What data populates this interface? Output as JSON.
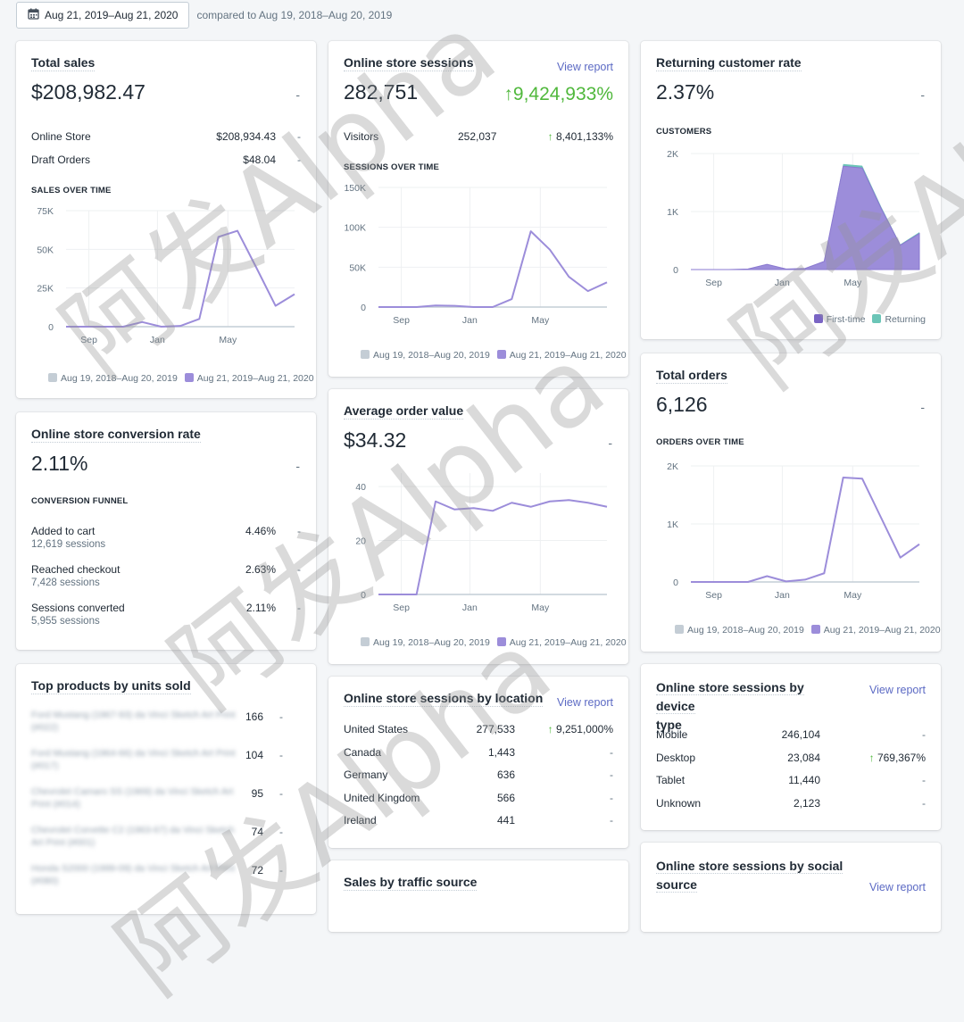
{
  "header": {
    "date_range": "Aug 21, 2019–Aug 21, 2020",
    "compare_text": "compared to Aug 19, 2018–Aug 20, 2019"
  },
  "colors": {
    "accent": "#9c8dda",
    "accent_dark": "#7a65c4",
    "previous": "#c4cdd5",
    "positive": "#50b83c",
    "link": "#5c6ac4",
    "returning": "#6bc5b7"
  },
  "total_sales": {
    "title": "Total sales",
    "value": "$208,982.47",
    "change": "-",
    "rows": [
      {
        "label": "Online Store",
        "value": "$208,934.43",
        "change": "-"
      },
      {
        "label": "Draft Orders",
        "value": "$48.04",
        "change": "-"
      }
    ],
    "chart_caption": "SALES OVER TIME",
    "legend_prev": "Aug 19, 2018–Aug 20, 2019",
    "legend_curr": "Aug 21, 2019–Aug 21, 2020"
  },
  "sessions": {
    "title": "Online store sessions",
    "view_report": "View report",
    "value": "282,751",
    "change": "9,424,933%",
    "visitors_label": "Visitors",
    "visitors_value": "252,037",
    "visitors_change": "8,401,133%",
    "chart_caption": "SESSIONS OVER TIME",
    "legend_prev": "Aug 19, 2018–Aug 20, 2019",
    "legend_curr": "Aug 21, 2019–Aug 21, 2020"
  },
  "returning": {
    "title": "Returning customer rate",
    "value": "2.37%",
    "change": "-",
    "chart_caption": "CUSTOMERS",
    "legend_first": "First-time",
    "legend_returning": "Returning"
  },
  "conversion": {
    "title": "Online store conversion rate",
    "value": "2.11%",
    "change": "-",
    "caption": "CONVERSION FUNNEL",
    "steps": [
      {
        "label": "Added to cart",
        "sessions": "12,619 sessions",
        "rate": "4.46%",
        "change": "-"
      },
      {
        "label": "Reached checkout",
        "sessions": "7,428 sessions",
        "rate": "2.63%",
        "change": "-"
      },
      {
        "label": "Sessions converted",
        "sessions": "5,955 sessions",
        "rate": "2.11%",
        "change": "-"
      }
    ]
  },
  "aov": {
    "title": "Average order value",
    "value": "$34.32",
    "change": "-",
    "legend_prev": "Aug 19, 2018–Aug 20, 2019",
    "legend_curr": "Aug 21, 2019–Aug 21, 2020"
  },
  "orders": {
    "title": "Total orders",
    "value": "6,126",
    "change": "-",
    "chart_caption": "ORDERS OVER TIME",
    "legend_prev": "Aug 19, 2018–Aug 20, 2019",
    "legend_curr": "Aug 21, 2019–Aug 21, 2020"
  },
  "top_products": {
    "title": "Top products by units sold",
    "items": [
      {
        "name": "Ford Mustang (1967-93) da Vinci Sketch Art Print (#022)",
        "units": "166",
        "change": "-"
      },
      {
        "name": "Ford Mustang (1964-66) da Vinci Sketch Art Print (#017)",
        "units": "104",
        "change": "-"
      },
      {
        "name": "Chevrolet Camaro SS (1969) da Vinci Sketch Art Print (#014)",
        "units": "95",
        "change": "-"
      },
      {
        "name": "Chevrolet Corvette C2 (1963-67) da Vinci Sketch Art Print (#001)",
        "units": "74",
        "change": "-"
      },
      {
        "name": "Honda S2000 (1999-09) da Vinci Sketch Art Print (#080)",
        "units": "72",
        "change": "-"
      }
    ]
  },
  "location": {
    "title": "Online store sessions by location",
    "view_report": "View report",
    "rows": [
      {
        "label": "United States",
        "value": "277,533",
        "change": "9,251,000%",
        "up": true
      },
      {
        "label": "Canada",
        "value": "1,443",
        "change": "-",
        "up": false
      },
      {
        "label": "Germany",
        "value": "636",
        "change": "-",
        "up": false
      },
      {
        "label": "United Kingdom",
        "value": "566",
        "change": "-",
        "up": false
      },
      {
        "label": "Ireland",
        "value": "441",
        "change": "-",
        "up": false
      }
    ]
  },
  "device": {
    "title_line1": "Online store sessions by device",
    "title_line2": "type",
    "view_report": "View report",
    "rows": [
      {
        "label": "Mobile",
        "value": "246,104",
        "change": "-",
        "up": false
      },
      {
        "label": "Desktop",
        "value": "23,084",
        "change": "769,367%",
        "up": true
      },
      {
        "label": "Tablet",
        "value": "11,440",
        "change": "-",
        "up": false
      },
      {
        "label": "Unknown",
        "value": "2,123",
        "change": "-",
        "up": false
      }
    ]
  },
  "traffic": {
    "title": "Sales by traffic source"
  },
  "social": {
    "title_line1": "Online store sessions by social",
    "title_line2": "source",
    "view_report": "View report"
  },
  "watermark": {
    "text": "阿发Alpha"
  },
  "chart_data": [
    {
      "type": "line",
      "title": "SALES OVER TIME",
      "x_ticks": [
        "Sep",
        "Jan",
        "May"
      ],
      "y_ticks": [
        "0",
        "25K",
        "50K",
        "75K"
      ],
      "ylim": [
        0,
        75000
      ],
      "series": [
        {
          "name": "Aug 19, 2018–Aug 20, 2019",
          "values": [
            0,
            0,
            0,
            0,
            0,
            0,
            0,
            0,
            0,
            0,
            0,
            0,
            0
          ]
        },
        {
          "name": "Aug 21, 2019–Aug 21, 2020",
          "values": [
            0,
            0,
            0,
            0,
            3000,
            0,
            500,
            5000,
            58000,
            62000,
            38000,
            13500,
            21000
          ]
        }
      ]
    },
    {
      "type": "line",
      "title": "SESSIONS OVER TIME",
      "x_ticks": [
        "Sep",
        "Jan",
        "May"
      ],
      "y_ticks": [
        "0",
        "50K",
        "100K",
        "150K"
      ],
      "ylim": [
        0,
        150000
      ],
      "series": [
        {
          "name": "Aug 19, 2018–Aug 20, 2019",
          "values": [
            0,
            0,
            0,
            0,
            0,
            0,
            0,
            0,
            0,
            0,
            0,
            0,
            0
          ]
        },
        {
          "name": "Aug 21, 2019–Aug 21, 2020",
          "values": [
            0,
            0,
            0,
            2000,
            1500,
            0,
            0,
            10000,
            95000,
            72000,
            38000,
            20000,
            31000
          ]
        }
      ]
    },
    {
      "type": "area",
      "title": "CUSTOMERS",
      "x_ticks": [
        "Sep",
        "Jan",
        "May"
      ],
      "y_ticks": [
        "0",
        "1K",
        "2K"
      ],
      "ylim": [
        0,
        2000
      ],
      "series": [
        {
          "name": "First-time",
          "values": [
            0,
            0,
            0,
            10,
            90,
            10,
            20,
            140,
            1780,
            1750,
            1050,
            420,
            620
          ]
        },
        {
          "name": "Returning",
          "values": [
            0,
            0,
            0,
            0,
            2,
            0,
            0,
            5,
            40,
            40,
            30,
            15,
            25
          ]
        }
      ]
    },
    {
      "type": "line",
      "title": "Average order value",
      "x_ticks": [
        "Sep",
        "Jan",
        "May"
      ],
      "y_ticks": [
        "0",
        "20",
        "40"
      ],
      "ylim": [
        0,
        45
      ],
      "series": [
        {
          "name": "Aug 19, 2018–Aug 20, 2019",
          "values": [
            0,
            0,
            0,
            0,
            0,
            0,
            0,
            0,
            0,
            0,
            0,
            0,
            0
          ]
        },
        {
          "name": "Aug 21, 2019–Aug 21, 2020",
          "values": [
            0,
            0,
            0,
            34.5,
            31.5,
            32,
            31,
            34,
            32.5,
            34.5,
            35,
            34,
            32.5
          ]
        }
      ]
    },
    {
      "type": "line",
      "title": "ORDERS OVER TIME",
      "x_ticks": [
        "Sep",
        "Jan",
        "May"
      ],
      "y_ticks": [
        "0",
        "1K",
        "2K"
      ],
      "ylim": [
        0,
        2000
      ],
      "series": [
        {
          "name": "Aug 19, 2018–Aug 20, 2019",
          "values": [
            0,
            0,
            0,
            0,
            0,
            0,
            0,
            0,
            0,
            0,
            0,
            0,
            0
          ]
        },
        {
          "name": "Aug 21, 2019–Aug 21, 2020",
          "values": [
            0,
            0,
            0,
            0,
            100,
            10,
            40,
            150,
            1800,
            1780,
            1100,
            420,
            650
          ]
        }
      ]
    }
  ]
}
